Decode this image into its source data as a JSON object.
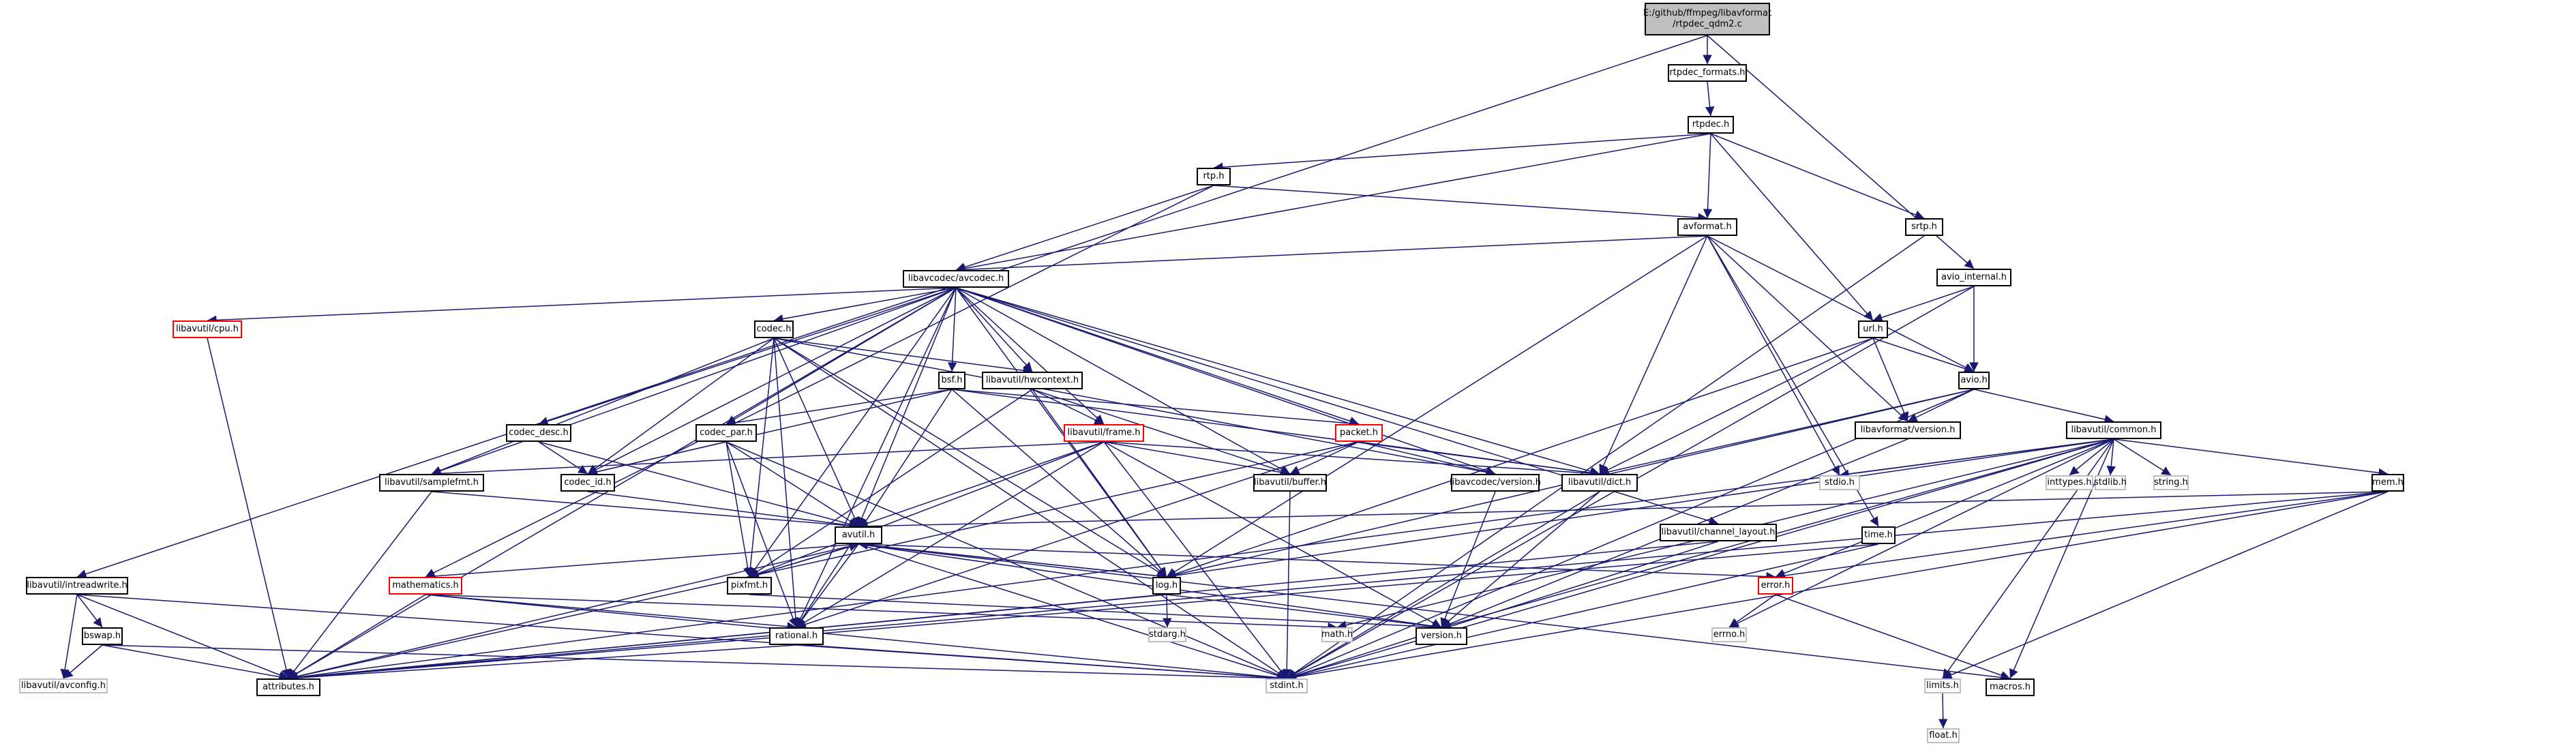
{
  "nodes": [
    {
      "id": "root",
      "label": "E:/github/ffmpeg/libavformat\n/rtpdec_qdm2.c",
      "style": "root"
    },
    {
      "id": "rtpdec_formats",
      "label": "rtpdec_formats.h",
      "style": "normal"
    },
    {
      "id": "rtpdec",
      "label": "rtpdec.h",
      "style": "normal"
    },
    {
      "id": "rtp",
      "label": "rtp.h",
      "style": "normal"
    },
    {
      "id": "srtp",
      "label": "srtp.h",
      "style": "normal"
    },
    {
      "id": "avformat",
      "label": "avformat.h",
      "style": "normal"
    },
    {
      "id": "avio_internal",
      "label": "avio_internal.h",
      "style": "normal"
    },
    {
      "id": "avcodec",
      "label": "libavcodec/avcodec.h",
      "style": "normal"
    },
    {
      "id": "cpu",
      "label": "libavutil/cpu.h",
      "style": "red"
    },
    {
      "id": "codec",
      "label": "codec.h",
      "style": "normal"
    },
    {
      "id": "url",
      "label": "url.h",
      "style": "normal"
    },
    {
      "id": "avio",
      "label": "avio.h",
      "style": "normal"
    },
    {
      "id": "bsf",
      "label": "bsf.h",
      "style": "normal"
    },
    {
      "id": "hwcontext",
      "label": "libavutil/hwcontext.h",
      "style": "normal"
    },
    {
      "id": "codec_desc",
      "label": "codec_desc.h",
      "style": "normal"
    },
    {
      "id": "codec_par",
      "label": "codec_par.h",
      "style": "normal"
    },
    {
      "id": "frame",
      "label": "libavutil/frame.h",
      "style": "red"
    },
    {
      "id": "packet",
      "label": "packet.h",
      "style": "red"
    },
    {
      "id": "lavf_version",
      "label": "libavformat/version.h",
      "style": "normal"
    },
    {
      "id": "common",
      "label": "libavutil/common.h",
      "style": "normal"
    },
    {
      "id": "samplefmt",
      "label": "libavutil/samplefmt.h",
      "style": "normal"
    },
    {
      "id": "codec_id",
      "label": "codec_id.h",
      "style": "normal"
    },
    {
      "id": "buffer",
      "label": "libavutil/buffer.h",
      "style": "normal"
    },
    {
      "id": "lavc_version",
      "label": "libavcodec/version.h",
      "style": "normal"
    },
    {
      "id": "dict",
      "label": "libavutil/dict.h",
      "style": "normal"
    },
    {
      "id": "stdio",
      "label": "stdio.h",
      "style": "gray"
    },
    {
      "id": "inttypes",
      "label": "inttypes.h",
      "style": "gray"
    },
    {
      "id": "stdlib",
      "label": "stdlib.h",
      "style": "gray"
    },
    {
      "id": "string",
      "label": "string.h",
      "style": "gray"
    },
    {
      "id": "mem",
      "label": "mem.h",
      "style": "normal"
    },
    {
      "id": "channel_layout",
      "label": "libavutil/channel_layout.h",
      "style": "normal"
    },
    {
      "id": "avutil",
      "label": "avutil.h",
      "style": "normal"
    },
    {
      "id": "time",
      "label": "time.h",
      "style": "normal"
    },
    {
      "id": "intreadwrite",
      "label": "libavutil/intreadwrite.h",
      "style": "normal"
    },
    {
      "id": "mathematics",
      "label": "mathematics.h",
      "style": "red"
    },
    {
      "id": "pixfmt",
      "label": "pixfmt.h",
      "style": "normal"
    },
    {
      "id": "log",
      "label": "log.h",
      "style": "normal"
    },
    {
      "id": "error",
      "label": "error.h",
      "style": "red"
    },
    {
      "id": "bswap",
      "label": "bswap.h",
      "style": "normal"
    },
    {
      "id": "stdarg",
      "label": "stdarg.h",
      "style": "gray"
    },
    {
      "id": "rational",
      "label": "rational.h",
      "style": "normal"
    },
    {
      "id": "math",
      "label": "math.h",
      "style": "gray"
    },
    {
      "id": "errno",
      "label": "errno.h",
      "style": "gray"
    },
    {
      "id": "version",
      "label": "version.h",
      "style": "normal"
    },
    {
      "id": "avconfig",
      "label": "libavutil/avconfig.h",
      "style": "gray"
    },
    {
      "id": "attributes",
      "label": "attributes.h",
      "style": "normal"
    },
    {
      "id": "stdint",
      "label": "stdint.h",
      "style": "gray"
    },
    {
      "id": "limits",
      "label": "limits.h",
      "style": "gray"
    },
    {
      "id": "macros",
      "label": "macros.h",
      "style": "normal"
    },
    {
      "id": "float",
      "label": "float.h",
      "style": "gray"
    }
  ],
  "edges": [
    [
      "root",
      "rtpdec_formats"
    ],
    [
      "root",
      "intreadwrite"
    ],
    [
      "root",
      "avio_internal"
    ],
    [
      "rtpdec_formats",
      "rtpdec"
    ],
    [
      "rtpdec",
      "rtp"
    ],
    [
      "rtpdec",
      "srtp"
    ],
    [
      "rtpdec",
      "avformat"
    ],
    [
      "rtpdec",
      "avcodec"
    ],
    [
      "rtpdec",
      "url"
    ],
    [
      "rtp",
      "avformat"
    ],
    [
      "rtp",
      "avcodec"
    ],
    [
      "rtp",
      "mathematics"
    ],
    [
      "srtp",
      "stdint"
    ],
    [
      "avformat",
      "avcodec"
    ],
    [
      "avformat",
      "avio"
    ],
    [
      "avformat",
      "dict"
    ],
    [
      "avformat",
      "log"
    ],
    [
      "avformat",
      "lavf_version"
    ],
    [
      "avformat",
      "stdio"
    ],
    [
      "avformat",
      "time"
    ],
    [
      "avio_internal",
      "avio"
    ],
    [
      "avio_internal",
      "url"
    ],
    [
      "avio_internal",
      "stdint"
    ],
    [
      "avcodec",
      "cpu"
    ],
    [
      "avcodec",
      "codec"
    ],
    [
      "avcodec",
      "bsf"
    ],
    [
      "avcodec",
      "hwcontext"
    ],
    [
      "avcodec",
      "codec_desc"
    ],
    [
      "avcodec",
      "codec_par"
    ],
    [
      "avcodec",
      "frame"
    ],
    [
      "avcodec",
      "packet"
    ],
    [
      "avcodec",
      "samplefmt"
    ],
    [
      "avcodec",
      "codec_id"
    ],
    [
      "avcodec",
      "buffer"
    ],
    [
      "avcodec",
      "lavc_version"
    ],
    [
      "avcodec",
      "dict"
    ],
    [
      "avcodec",
      "channel_layout"
    ],
    [
      "avcodec",
      "avutil"
    ],
    [
      "avcodec",
      "attributes"
    ],
    [
      "avcodec",
      "log"
    ],
    [
      "avcodec",
      "pixfmt"
    ],
    [
      "avcodec",
      "rational"
    ],
    [
      "cpu",
      "attributes"
    ],
    [
      "codec",
      "hwcontext"
    ],
    [
      "codec",
      "samplefmt"
    ],
    [
      "codec",
      "codec_id"
    ],
    [
      "codec",
      "lavc_version"
    ],
    [
      "codec",
      "avutil"
    ],
    [
      "codec",
      "log"
    ],
    [
      "codec",
      "pixfmt"
    ],
    [
      "codec",
      "rational"
    ],
    [
      "codec",
      "stdint"
    ],
    [
      "url",
      "avio"
    ],
    [
      "url",
      "lavf_version"
    ],
    [
      "url",
      "dict"
    ],
    [
      "url",
      "log"
    ],
    [
      "avio",
      "common"
    ],
    [
      "avio",
      "lavf_version"
    ],
    [
      "avio",
      "dict"
    ],
    [
      "avio",
      "log"
    ],
    [
      "avio",
      "stdint"
    ],
    [
      "bsf",
      "codec_par"
    ],
    [
      "bsf",
      "codec_id"
    ],
    [
      "bsf",
      "packet"
    ],
    [
      "bsf",
      "dict"
    ],
    [
      "bsf",
      "log"
    ],
    [
      "bsf",
      "rational"
    ],
    [
      "hwcontext",
      "frame"
    ],
    [
      "hwcontext",
      "buffer"
    ],
    [
      "hwcontext",
      "log"
    ],
    [
      "hwcontext",
      "pixfmt"
    ],
    [
      "codec_desc",
      "codec_id"
    ],
    [
      "codec_desc",
      "avutil"
    ],
    [
      "codec_par",
      "codec_id"
    ],
    [
      "codec_par",
      "avutil"
    ],
    [
      "codec_par",
      "pixfmt"
    ],
    [
      "codec_par",
      "rational"
    ],
    [
      "codec_par",
      "stdint"
    ],
    [
      "frame",
      "buffer"
    ],
    [
      "frame",
      "dict"
    ],
    [
      "frame",
      "avutil"
    ],
    [
      "frame",
      "pixfmt"
    ],
    [
      "frame",
      "rational"
    ],
    [
      "frame",
      "version"
    ],
    [
      "frame",
      "samplefmt"
    ],
    [
      "frame",
      "stdint"
    ],
    [
      "packet",
      "buffer"
    ],
    [
      "packet",
      "dict"
    ],
    [
      "packet",
      "lavc_version"
    ],
    [
      "packet",
      "rational"
    ],
    [
      "packet",
      "attributes"
    ],
    [
      "lavf_version",
      "version"
    ],
    [
      "common",
      "stdio"
    ],
    [
      "common",
      "inttypes"
    ],
    [
      "common",
      "stdlib"
    ],
    [
      "common",
      "string"
    ],
    [
      "common",
      "mem"
    ],
    [
      "common",
      "attributes"
    ],
    [
      "common",
      "macros"
    ],
    [
      "common",
      "version"
    ],
    [
      "common",
      "error"
    ],
    [
      "common",
      "limits"
    ],
    [
      "common",
      "math"
    ],
    [
      "common",
      "errno"
    ],
    [
      "common",
      "stdint"
    ],
    [
      "common",
      "log"
    ],
    [
      "samplefmt",
      "avutil"
    ],
    [
      "samplefmt",
      "attributes"
    ],
    [
      "codec_id",
      "avutil"
    ],
    [
      "buffer",
      "stdint"
    ],
    [
      "lavc_version",
      "version"
    ],
    [
      "dict",
      "version"
    ],
    [
      "dict",
      "stdint"
    ],
    [
      "mem",
      "avutil"
    ],
    [
      "mem",
      "attributes"
    ],
    [
      "mem",
      "error"
    ],
    [
      "mem",
      "stdint"
    ],
    [
      "mem",
      "limits"
    ],
    [
      "channel_layout",
      "attributes"
    ],
    [
      "channel_layout",
      "stdint"
    ],
    [
      "avutil",
      "mathematics"
    ],
    [
      "avutil",
      "pixfmt"
    ],
    [
      "avutil",
      "log"
    ],
    [
      "avutil",
      "rational"
    ],
    [
      "avutil",
      "version"
    ],
    [
      "avutil",
      "error"
    ],
    [
      "avutil",
      "macros"
    ],
    [
      "avutil",
      "stdint"
    ],
    [
      "avutil",
      "attributes"
    ],
    [
      "time",
      "attributes"
    ],
    [
      "time",
      "stdint"
    ],
    [
      "intreadwrite",
      "bswap"
    ],
    [
      "intreadwrite",
      "avconfig"
    ],
    [
      "intreadwrite",
      "attributes"
    ],
    [
      "intreadwrite",
      "stdint"
    ],
    [
      "mathematics",
      "math"
    ],
    [
      "mathematics",
      "rational"
    ],
    [
      "mathematics",
      "attributes"
    ],
    [
      "mathematics",
      "stdint"
    ],
    [
      "pixfmt",
      "avutil"
    ],
    [
      "pixfmt",
      "version"
    ],
    [
      "log",
      "avutil"
    ],
    [
      "log",
      "attributes"
    ],
    [
      "log",
      "stdarg"
    ],
    [
      "log",
      "version"
    ],
    [
      "error",
      "errno"
    ],
    [
      "error",
      "macros"
    ],
    [
      "bswap",
      "attributes"
    ],
    [
      "bswap",
      "avconfig"
    ],
    [
      "bswap",
      "stdint"
    ],
    [
      "rational",
      "attributes"
    ],
    [
      "rational",
      "stdint"
    ],
    [
      "limits",
      "float"
    ]
  ]
}
